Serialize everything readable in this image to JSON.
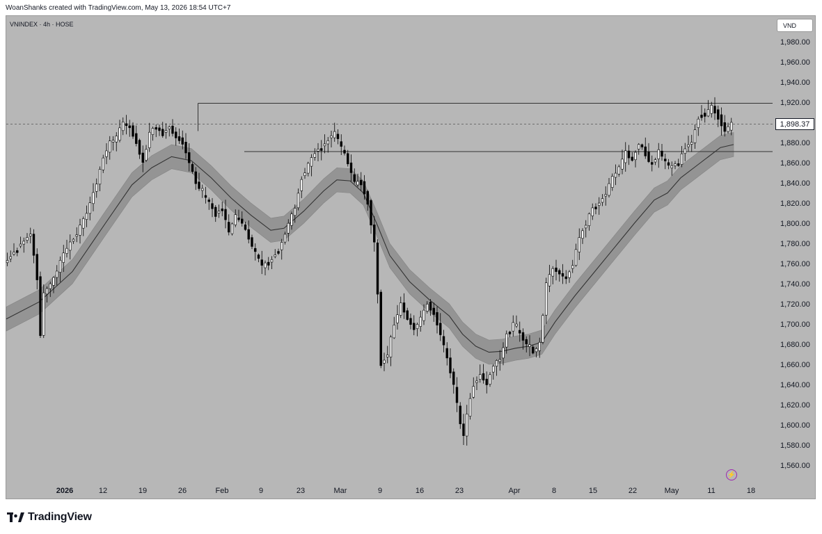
{
  "header": {
    "text": "WoanShanks created with TradingView.com, May 13, 2026 18:54 UTC+7"
  },
  "symbol": {
    "text": "VNINDEX · 4h · HOSE"
  },
  "currency": {
    "label": "VND"
  },
  "price_tag": {
    "value": "1,898.37"
  },
  "footer": {
    "brand": "TradingView"
  },
  "colors": {
    "background": "#b7b7b7",
    "candle_up": "#ffffff",
    "candle_down": "#000000",
    "band": "#8f8f8f",
    "ma": "#333333"
  },
  "chart_data": {
    "type": "candlestick",
    "title": "",
    "ylim": [
      1545,
      1995
    ],
    "y_ticks": [
      "1,980.00",
      "1,960.00",
      "1,940.00",
      "1,920.00",
      "1,900.00",
      "1,880.00",
      "1,860.00",
      "1,840.00",
      "1,820.00",
      "1,800.00",
      "1,780.00",
      "1,760.00",
      "1,740.00",
      "1,720.00",
      "1,700.00",
      "1,680.00",
      "1,660.00",
      "1,640.00",
      "1,620.00",
      "1,600.00",
      "1,580.00",
      "1,560.00"
    ],
    "x_ticks": [
      {
        "label": "2026",
        "bold": true
      },
      {
        "label": "12",
        "bold": false
      },
      {
        "label": "19",
        "bold": false
      },
      {
        "label": "26",
        "bold": false
      },
      {
        "label": "Feb",
        "bold": false
      },
      {
        "label": "9",
        "bold": false
      },
      {
        "label": "23",
        "bold": false
      },
      {
        "label": "Mar",
        "bold": false
      },
      {
        "label": "9",
        "bold": false
      },
      {
        "label": "16",
        "bold": false
      },
      {
        "label": "23",
        "bold": false
      },
      {
        "label": "Apr",
        "bold": false
      },
      {
        "label": "8",
        "bold": false
      },
      {
        "label": "15",
        "bold": false
      },
      {
        "label": "22",
        "bold": false
      },
      {
        "label": "May",
        "bold": false
      },
      {
        "label": "11",
        "bold": false
      },
      {
        "label": "18",
        "bold": false
      }
    ],
    "levels": {
      "resistance": 1919,
      "support": 1871,
      "last_price": 1898.37
    },
    "path_points": [
      [
        0,
        1760
      ],
      [
        4,
        1775
      ],
      [
        8,
        1790
      ],
      [
        10,
        1745
      ],
      [
        11,
        1690
      ],
      [
        12,
        1730
      ],
      [
        15,
        1745
      ],
      [
        18,
        1770
      ],
      [
        22,
        1790
      ],
      [
        25,
        1810
      ],
      [
        28,
        1840
      ],
      [
        30,
        1865
      ],
      [
        32,
        1880
      ],
      [
        34,
        1885
      ],
      [
        36,
        1900
      ],
      [
        38,
        1895
      ],
      [
        40,
        1880
      ],
      [
        42,
        1860
      ],
      [
        44,
        1890
      ],
      [
        46,
        1895
      ],
      [
        48,
        1888
      ],
      [
        50,
        1895
      ],
      [
        52,
        1885
      ],
      [
        54,
        1880
      ],
      [
        56,
        1860
      ],
      [
        58,
        1840
      ],
      [
        60,
        1830
      ],
      [
        62,
        1820
      ],
      [
        64,
        1808
      ],
      [
        66,
        1815
      ],
      [
        68,
        1790
      ],
      [
        70,
        1808
      ],
      [
        72,
        1800
      ],
      [
        74,
        1785
      ],
      [
        76,
        1770
      ],
      [
        78,
        1758
      ],
      [
        80,
        1760
      ],
      [
        82,
        1770
      ],
      [
        84,
        1780
      ],
      [
        86,
        1800
      ],
      [
        88,
        1815
      ],
      [
        90,
        1845
      ],
      [
        92,
        1858
      ],
      [
        94,
        1870
      ],
      [
        96,
        1875
      ],
      [
        98,
        1882
      ],
      [
        100,
        1890
      ],
      [
        102,
        1875
      ],
      [
        104,
        1860
      ],
      [
        106,
        1840
      ],
      [
        108,
        1840
      ],
      [
        110,
        1820
      ],
      [
        111,
        1800
      ],
      [
        112,
        1780
      ],
      [
        113,
        1730
      ],
      [
        114,
        1660
      ],
      [
        116,
        1670
      ],
      [
        118,
        1700
      ],
      [
        120,
        1720
      ],
      [
        122,
        1705
      ],
      [
        124,
        1695
      ],
      [
        126,
        1705
      ],
      [
        128,
        1720
      ],
      [
        130,
        1710
      ],
      [
        132,
        1690
      ],
      [
        134,
        1665
      ],
      [
        136,
        1640
      ],
      [
        138,
        1600
      ],
      [
        139,
        1590
      ],
      [
        140,
        1610
      ],
      [
        142,
        1640
      ],
      [
        144,
        1650
      ],
      [
        146,
        1640
      ],
      [
        148,
        1660
      ],
      [
        150,
        1665
      ],
      [
        152,
        1690
      ],
      [
        154,
        1700
      ],
      [
        156,
        1690
      ],
      [
        158,
        1680
      ],
      [
        160,
        1672
      ],
      [
        162,
        1680
      ],
      [
        164,
        1740
      ],
      [
        166,
        1755
      ],
      [
        168,
        1750
      ],
      [
        170,
        1745
      ],
      [
        172,
        1760
      ],
      [
        174,
        1785
      ],
      [
        176,
        1800
      ],
      [
        178,
        1815
      ],
      [
        180,
        1820
      ],
      [
        182,
        1830
      ],
      [
        184,
        1845
      ],
      [
        186,
        1855
      ],
      [
        188,
        1870
      ],
      [
        190,
        1862
      ],
      [
        192,
        1880
      ],
      [
        194,
        1868
      ],
      [
        196,
        1858
      ],
      [
        198,
        1872
      ],
      [
        200,
        1860
      ],
      [
        202,
        1855
      ],
      [
        204,
        1860
      ],
      [
        206,
        1875
      ],
      [
        208,
        1880
      ],
      [
        210,
        1905
      ],
      [
        212,
        1908
      ],
      [
        214,
        1915
      ],
      [
        216,
        1905
      ],
      [
        218,
        1892
      ],
      [
        220,
        1898
      ]
    ],
    "ma": [
      [
        0,
        1705
      ],
      [
        10,
        1722
      ],
      [
        20,
        1752
      ],
      [
        30,
        1800
      ],
      [
        38,
        1838
      ],
      [
        44,
        1855
      ],
      [
        50,
        1866
      ],
      [
        56,
        1862
      ],
      [
        62,
        1845
      ],
      [
        68,
        1825
      ],
      [
        74,
        1808
      ],
      [
        80,
        1793
      ],
      [
        84,
        1795
      ],
      [
        90,
        1812
      ],
      [
        96,
        1832
      ],
      [
        100,
        1843
      ],
      [
        104,
        1842
      ],
      [
        108,
        1830
      ],
      [
        112,
        1800
      ],
      [
        116,
        1768
      ],
      [
        122,
        1742
      ],
      [
        128,
        1724
      ],
      [
        134,
        1708
      ],
      [
        138,
        1690
      ],
      [
        142,
        1678
      ],
      [
        146,
        1672
      ],
      [
        150,
        1673
      ],
      [
        154,
        1676
      ],
      [
        158,
        1678
      ],
      [
        162,
        1682
      ],
      [
        166,
        1702
      ],
      [
        172,
        1728
      ],
      [
        178,
        1752
      ],
      [
        184,
        1776
      ],
      [
        190,
        1800
      ],
      [
        196,
        1823
      ],
      [
        200,
        1830
      ],
      [
        204,
        1845
      ],
      [
        210,
        1860
      ],
      [
        216,
        1875
      ],
      [
        220,
        1878
      ]
    ],
    "band_half_width": 12
  }
}
